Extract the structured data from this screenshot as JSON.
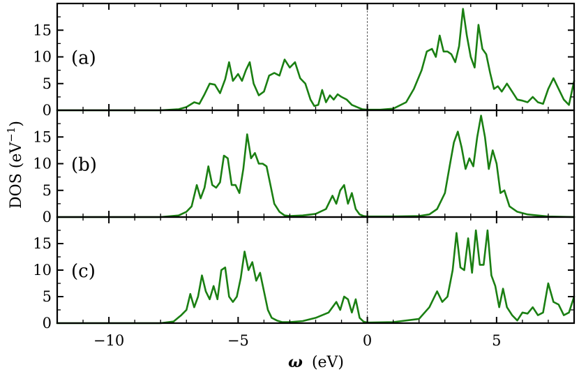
{
  "chart_data": {
    "type": "line",
    "shared_x": true,
    "xlabel_symbol": "ω",
    "xlabel_unit": "(eV)",
    "ylabel": "DOS (eV",
    "ylabel_sup": "−1",
    "ylabel_close": ")",
    "xlim": [
      -12,
      8
    ],
    "xticks": [
      -10,
      -5,
      0,
      5
    ],
    "xtick_labels": [
      "−10",
      "−5",
      "0",
      "5"
    ],
    "x_minor_step": 1,
    "zero_line": true,
    "color": "#1a7f12",
    "panels": [
      {
        "label": "(a)",
        "ylim": [
          0,
          20
        ],
        "yticks": [
          0,
          5,
          10,
          15
        ],
        "x": [
          -12,
          -8,
          -7.3,
          -7.0,
          -6.7,
          -6.5,
          -6.3,
          -6.1,
          -5.9,
          -5.7,
          -5.5,
          -5.35,
          -5.2,
          -5.0,
          -4.85,
          -4.7,
          -4.55,
          -4.4,
          -4.2,
          -4.0,
          -3.8,
          -3.6,
          -3.4,
          -3.2,
          -3.0,
          -2.8,
          -2.6,
          -2.4,
          -2.2,
          -2.05,
          -1.9,
          -1.75,
          -1.6,
          -1.45,
          -1.3,
          -1.15,
          -1.0,
          -0.8,
          -0.6,
          -0.4,
          -0.2,
          0,
          0.5,
          1.0,
          1.5,
          1.8,
          2.1,
          2.3,
          2.5,
          2.65,
          2.8,
          2.95,
          3.1,
          3.25,
          3.4,
          3.55,
          3.7,
          3.85,
          4.0,
          4.15,
          4.3,
          4.45,
          4.6,
          4.75,
          4.9,
          5.05,
          5.2,
          5.4,
          5.6,
          5.8,
          6.0,
          6.2,
          6.4,
          6.6,
          6.8,
          7.0,
          7.2,
          7.4,
          7.6,
          7.8,
          8.0
        ],
        "y": [
          0,
          0,
          0.2,
          0.6,
          1.5,
          1.2,
          3.0,
          5.0,
          4.8,
          3.2,
          5.8,
          9.0,
          5.5,
          6.8,
          5.5,
          7.5,
          9.0,
          5.0,
          2.8,
          3.5,
          6.5,
          7.0,
          6.5,
          9.5,
          8.0,
          9.0,
          6.0,
          5.0,
          2.0,
          0.8,
          1.0,
          3.8,
          1.5,
          2.8,
          2.0,
          3.0,
          2.5,
          2.0,
          1.0,
          0.6,
          0.2,
          0.1,
          0.1,
          0.3,
          1.5,
          4.0,
          7.5,
          11.0,
          11.5,
          10.0,
          14.0,
          11.0,
          11.0,
          10.5,
          9.0,
          12.0,
          19.0,
          14.0,
          10.0,
          8.0,
          16.0,
          11.5,
          10.5,
          7.0,
          4.0,
          4.5,
          3.5,
          5.0,
          3.5,
          2.0,
          1.8,
          1.5,
          2.5,
          1.5,
          1.2,
          4.0,
          6.0,
          4.0,
          2.0,
          1.0,
          5.5
        ]
      },
      {
        "label": "(b)",
        "ylim": [
          0,
          20
        ],
        "yticks": [
          0,
          5,
          10,
          15
        ],
        "x": [
          -12,
          -8,
          -7.3,
          -7.0,
          -6.8,
          -6.6,
          -6.45,
          -6.3,
          -6.15,
          -6.0,
          -5.85,
          -5.7,
          -5.55,
          -5.4,
          -5.25,
          -5.1,
          -4.95,
          -4.8,
          -4.65,
          -4.5,
          -4.35,
          -4.2,
          -4.05,
          -3.9,
          -3.75,
          -3.6,
          -3.4,
          -3.2,
          -3.0,
          -2.5,
          -2.0,
          -1.6,
          -1.35,
          -1.2,
          -1.05,
          -0.9,
          -0.75,
          -0.6,
          -0.45,
          -0.3,
          -0.15,
          0,
          0.5,
          1.0,
          2.0,
          2.4,
          2.7,
          3.0,
          3.2,
          3.35,
          3.5,
          3.65,
          3.8,
          3.95,
          4.1,
          4.25,
          4.4,
          4.55,
          4.7,
          4.85,
          5.0,
          5.15,
          5.3,
          5.5,
          5.8,
          6.2,
          7.0,
          8.0
        ],
        "y": [
          0,
          0,
          0.3,
          1.0,
          2.0,
          6.0,
          3.5,
          5.5,
          9.5,
          6.0,
          5.5,
          6.5,
          11.5,
          11.0,
          6.0,
          6.0,
          4.5,
          9.0,
          15.5,
          11.0,
          12.0,
          10.0,
          10.0,
          9.5,
          6.0,
          2.5,
          1.0,
          0.3,
          0.2,
          0.3,
          0.6,
          1.5,
          4.0,
          2.5,
          5.0,
          6.0,
          2.5,
          4.5,
          1.5,
          0.5,
          0.2,
          0.1,
          0.1,
          0.1,
          0.2,
          0.5,
          1.5,
          4.5,
          10.0,
          14.0,
          16.0,
          13.0,
          9.0,
          11.0,
          9.5,
          15.0,
          19.0,
          15.0,
          9.0,
          12.5,
          10.0,
          4.5,
          5.0,
          2.0,
          1.0,
          0.5,
          0.1,
          0
        ]
      },
      {
        "label": "(c)",
        "ylim": [
          0,
          20
        ],
        "yticks": [
          0,
          5,
          10,
          15
        ],
        "x": [
          -12,
          -8,
          -7.5,
          -7.2,
          -7.0,
          -6.85,
          -6.7,
          -6.55,
          -6.4,
          -6.25,
          -6.1,
          -5.95,
          -5.8,
          -5.65,
          -5.5,
          -5.35,
          -5.2,
          -5.05,
          -4.9,
          -4.75,
          -4.6,
          -4.45,
          -4.3,
          -4.15,
          -4.0,
          -3.85,
          -3.7,
          -3.5,
          -3.3,
          -3.0,
          -2.5,
          -2.0,
          -1.5,
          -1.2,
          -1.05,
          -0.9,
          -0.75,
          -0.6,
          -0.45,
          -0.3,
          -0.15,
          0,
          1.0,
          2.0,
          2.4,
          2.7,
          2.9,
          3.1,
          3.3,
          3.45,
          3.6,
          3.75,
          3.9,
          4.05,
          4.2,
          4.35,
          4.5,
          4.65,
          4.8,
          4.95,
          5.1,
          5.25,
          5.4,
          5.6,
          5.8,
          6.0,
          6.2,
          6.4,
          6.6,
          6.8,
          7.0,
          7.2,
          7.4,
          7.6,
          7.8,
          8.0
        ],
        "y": [
          0,
          0,
          0.3,
          1.5,
          2.5,
          5.5,
          3.0,
          5.0,
          9.0,
          6.0,
          4.5,
          7.0,
          4.5,
          10.0,
          10.5,
          5.0,
          4.0,
          5.0,
          8.5,
          13.5,
          10.0,
          11.5,
          8.0,
          9.5,
          6.0,
          2.5,
          1.0,
          0.5,
          0.2,
          0.2,
          0.4,
          1.0,
          2.0,
          4.0,
          2.5,
          5.0,
          4.5,
          2.0,
          4.5,
          1.0,
          0.3,
          0.1,
          0.2,
          0.8,
          3.0,
          6.0,
          4.0,
          5.0,
          10.0,
          17.0,
          10.5,
          10.0,
          16.0,
          9.5,
          17.5,
          11.0,
          11.0,
          17.5,
          9.0,
          7.0,
          3.0,
          6.5,
          3.0,
          1.5,
          0.5,
          2.0,
          1.8,
          3.0,
          1.5,
          2.0,
          7.5,
          4.0,
          3.5,
          1.5,
          2.0,
          5.0
        ]
      }
    ]
  }
}
